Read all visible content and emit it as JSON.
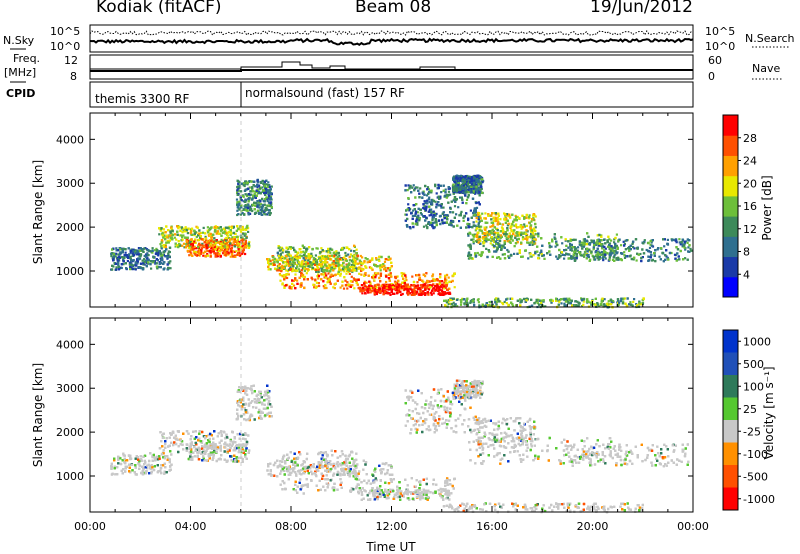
{
  "header": {
    "radar": "Kodiak (fitACF)",
    "beam": "Beam 08",
    "date": "19/Jun/2012"
  },
  "chart_data": [
    {
      "type": "line",
      "panel": "noise",
      "left_label": "N.Sky",
      "right_label": "N.Search",
      "y_ticks_left": [
        "10^5",
        "10^0"
      ],
      "y_ticks_right": [
        "10^5",
        "10^0"
      ],
      "y_scale": "log"
    },
    {
      "type": "line",
      "panel": "frequency",
      "left_label": "Freq.",
      "left_unit": "[MHz]",
      "right_label": "Nave",
      "y_ticks_left": [
        "12",
        "8"
      ],
      "y_ticks_right": [
        "60",
        "0"
      ]
    },
    {
      "type": "table",
      "panel": "cpid",
      "label": "CPID",
      "segments": [
        {
          "name": "themis 3300 RF",
          "start_hour": 0,
          "end_hour": 6
        },
        {
          "name": "normalsound (fast) 157 RF",
          "start_hour": 6,
          "end_hour": 24
        }
      ]
    },
    {
      "type": "heatmap",
      "panel": "power",
      "ylabel": "Slant Range [km]",
      "ylim": [
        180,
        4600
      ],
      "y_ticks": [
        1000,
        2000,
        3000,
        4000
      ],
      "xlim": [
        0,
        24
      ],
      "grid": false,
      "colorbar": {
        "label": "Power [dB]",
        "ticks": [
          "4",
          "8",
          "12",
          "16",
          "20",
          "24",
          "28"
        ],
        "range": [
          0,
          30
        ],
        "colors": [
          "#0000ff",
          "#1a3aa8",
          "#2f6f8f",
          "#3d8a5a",
          "#6dbf3a",
          "#e8e800",
          "#ffa000",
          "#ff5000",
          "#ff0000"
        ]
      }
    },
    {
      "type": "heatmap",
      "panel": "velocity",
      "ylabel": "Slant Range [km]",
      "xlabel": "Time UT",
      "ylim": [
        180,
        4600
      ],
      "y_ticks": [
        1000,
        2000,
        3000,
        4000
      ],
      "xlim": [
        0,
        24
      ],
      "x_ticks": [
        "00:00",
        "04:00",
        "08:00",
        "12:00",
        "16:00",
        "20:00",
        "00:00"
      ],
      "grid": false,
      "colorbar": {
        "label": "Velocity [m s⁻¹]",
        "ticks": [
          "1000",
          "500",
          "100",
          "25",
          "-25",
          "-100",
          "-500",
          "-1000"
        ],
        "colors": [
          "#0033cc",
          "#2050b8",
          "#2e7a5a",
          "#55c830",
          "#c8c8c8",
          "#ff9000",
          "#ff5000",
          "#ff0000"
        ]
      }
    }
  ]
}
